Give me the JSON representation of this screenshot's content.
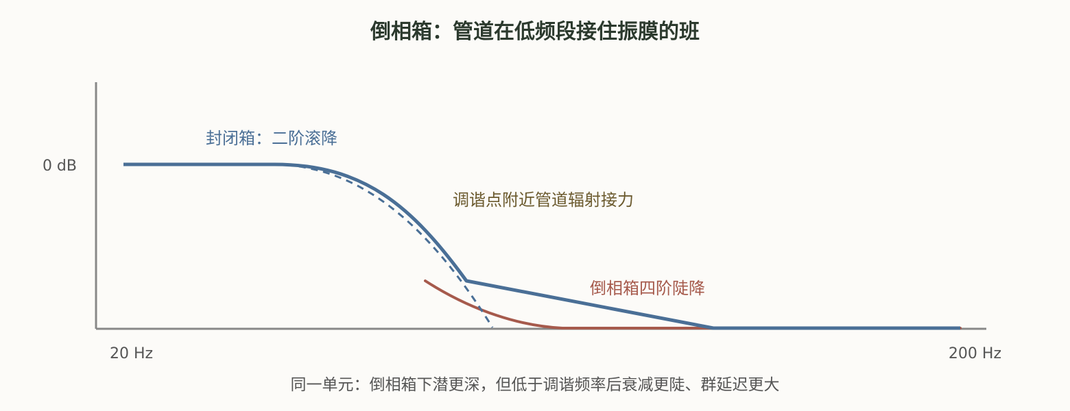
{
  "title": "倒相箱：管道在低频段接住振膜的班",
  "axes": {
    "y_tick": "0 dB",
    "x_start": "20 Hz",
    "x_end": "200 Hz",
    "axis_color": "#888888"
  },
  "annotations": {
    "sealed": "封闭箱：二阶滚降",
    "port_assist": "调谐点附近管道辐射接力",
    "ported": "倒相箱四阶陡降"
  },
  "caption": "同一单元：倒相箱下潜更深，但低于调谐频率后衰减更陡、群延迟更大",
  "colors": {
    "blue": "#4a6f96",
    "red": "#a65a4c",
    "annot_blue": "#4a6f96",
    "annot_brown": "#6b5a2e",
    "annot_red": "#a65a4c"
  }
}
